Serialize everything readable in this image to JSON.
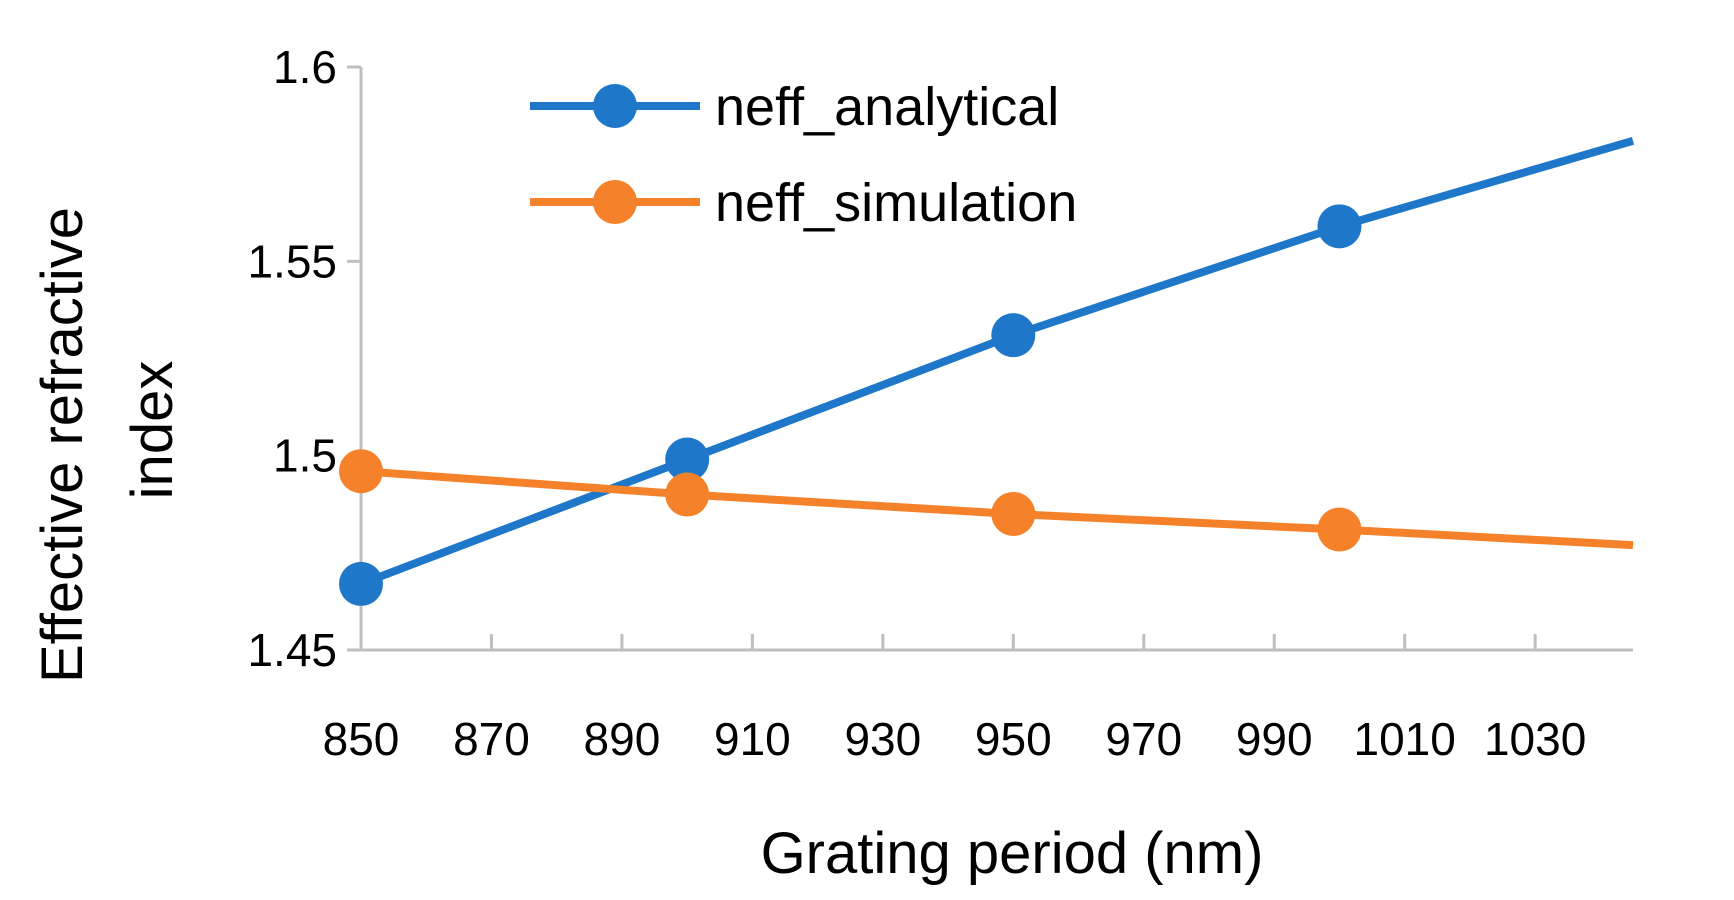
{
  "chart_data": {
    "type": "line",
    "xlabel": "Grating period (nm)",
    "ylabel_lines": [
      "Effective refractive",
      "index"
    ],
    "xlim": [
      850,
      1045
    ],
    "ylim": [
      1.45,
      1.6
    ],
    "x_ticks": [
      850,
      870,
      890,
      910,
      930,
      950,
      970,
      990,
      1010,
      1030
    ],
    "x_tick_labels": [
      "850",
      "870",
      "890",
      "910",
      "930",
      "950",
      "970",
      "990",
      "1010",
      "1030"
    ],
    "y_ticks": [
      1.45,
      1.5,
      1.55,
      1.6
    ],
    "y_tick_labels": [
      "1.45",
      "1.5",
      "1.55",
      "1.6"
    ],
    "grid": false,
    "legend_position": "top-center",
    "series": [
      {
        "name": "neff_analytical",
        "color": "#1f77c9",
        "line_x": [
          850,
          900,
          950,
          1000,
          1045
        ],
        "line_y": [
          1.467,
          1.499,
          1.531,
          1.559,
          1.581
        ],
        "marker_x": [
          850,
          900,
          950,
          1000
        ],
        "marker_y": [
          1.467,
          1.499,
          1.531,
          1.559
        ]
      },
      {
        "name": "neff_simulation",
        "color": "#f5822a",
        "line_x": [
          850,
          900,
          950,
          1000,
          1045
        ],
        "line_y": [
          1.496,
          1.49,
          1.485,
          1.481,
          1.477
        ],
        "marker_x": [
          850,
          900,
          950,
          1000
        ],
        "marker_y": [
          1.496,
          1.49,
          1.485,
          1.481
        ]
      }
    ]
  }
}
